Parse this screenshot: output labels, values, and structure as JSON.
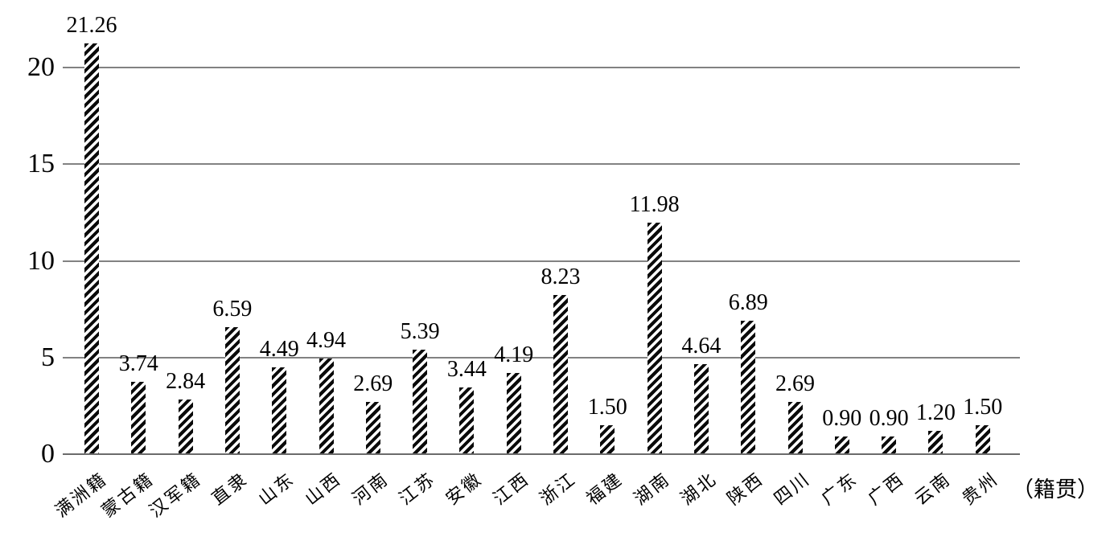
{
  "chart_data": {
    "type": "bar",
    "title": "",
    "categories": [
      "满洲籍",
      "蒙古籍",
      "汉军籍",
      "直隶",
      "山东",
      "山西",
      "河南",
      "江苏",
      "安徽",
      "江西",
      "浙江",
      "福建",
      "湖南",
      "湖北",
      "陕西",
      "四川",
      "广东",
      "广西",
      "云南",
      "贵州"
    ],
    "values": [
      21.26,
      3.74,
      2.84,
      6.59,
      4.49,
      4.94,
      2.69,
      5.39,
      3.44,
      4.19,
      8.23,
      1.5,
      11.98,
      4.64,
      6.89,
      2.69,
      0.9,
      0.9,
      1.2,
      1.5
    ],
    "value_labels": [
      "21.26",
      "3.74",
      "2.84",
      "6.59",
      "4.49",
      "4.94",
      "2.69",
      "5.39",
      "3.44",
      "4.19",
      "8.23",
      "1.50",
      "11.98",
      "4.64",
      "6.89",
      "2.69",
      "0.90",
      "0.90",
      "1.20",
      "1.50"
    ],
    "xlabel": "（籍贯）",
    "ylabel": "",
    "y_ticks": [
      "0",
      "5",
      "10",
      "15",
      "20"
    ],
    "ylim": [
      0,
      20
    ],
    "grid": "horizontal",
    "legend_position": "none",
    "bar_style": "diagonal-hatch",
    "colors": {
      "bar_hatch": "#0a0a0a",
      "bar_background": "#ffffff",
      "gridline": "#828282",
      "axis_line": "#6b6b6b",
      "text": "#000000",
      "background": "#ffffff"
    }
  }
}
